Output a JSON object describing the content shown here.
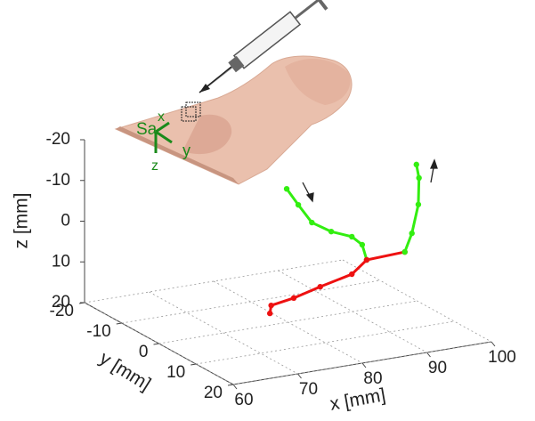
{
  "chart_data": {
    "type": "line3d",
    "xlabel": "x [mm]",
    "ylabel": "y [mm]",
    "zlabel": "z [mm]",
    "xlim": [
      60,
      100
    ],
    "ylim": [
      -20,
      20
    ],
    "zlim": [
      -20,
      20
    ],
    "xticks": [
      60,
      70,
      80,
      90,
      100
    ],
    "yticks": [
      -20,
      -10,
      0,
      10,
      20
    ],
    "zticks": [
      -20,
      -10,
      0,
      10,
      20
    ],
    "grid": true,
    "series": [
      {
        "color": "#33ee11",
        "x": [
          79.8,
          81.6,
          83.7,
          86.7,
          89.9,
          91.5,
          92.2
        ],
        "y": [
          0,
          0,
          0,
          0,
          0,
          0,
          0
        ],
        "z": [
          -12.8,
          -8.4,
          -3.5,
          -0.5,
          1.6,
          4.0,
          7.9
        ]
      },
      {
        "color": "#ee1111",
        "x": [
          77.2,
          77.4,
          80.9,
          85.0,
          89.9,
          92.2,
          98.1
        ],
        "y": [
          0,
          0,
          0,
          0,
          0,
          0,
          0
        ],
        "z": [
          17.1,
          15.2,
          14.3,
          12.6,
          10.8,
          7.9,
          7.5
        ]
      },
      {
        "color": "#33ee11",
        "x": [
          98.1,
          99.2,
          100.2,
          100.3,
          99.9
        ],
        "y": [
          0,
          0,
          0,
          0,
          0
        ],
        "z": [
          7.5,
          3.2,
          -3.6,
          -10.1,
          -13.5
        ]
      }
    ],
    "frame": {
      "origin": "Sa",
      "axes": [
        "x",
        "y",
        "z"
      ]
    }
  }
}
